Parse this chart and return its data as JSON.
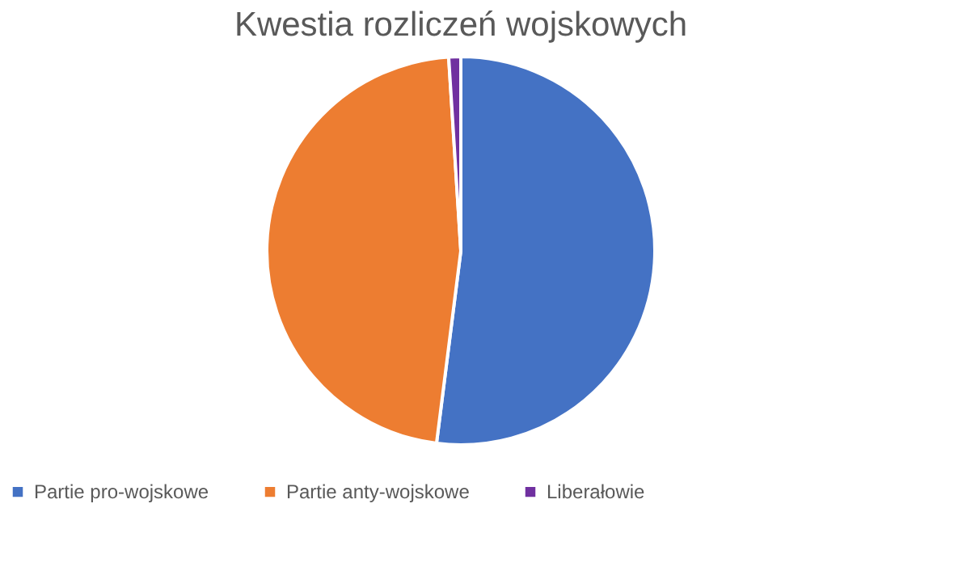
{
  "chart_data": {
    "type": "pie",
    "title": "Kwestia rozliczeń wojskowych",
    "categories": [
      "Partie pro-wojskowe",
      "Partie anty-wojskowe",
      "Liberałowie"
    ],
    "values": [
      52,
      47,
      1
    ],
    "colors": [
      "#4472c4",
      "#ed7d31",
      "#7030a0"
    ],
    "legend": "bottom"
  }
}
